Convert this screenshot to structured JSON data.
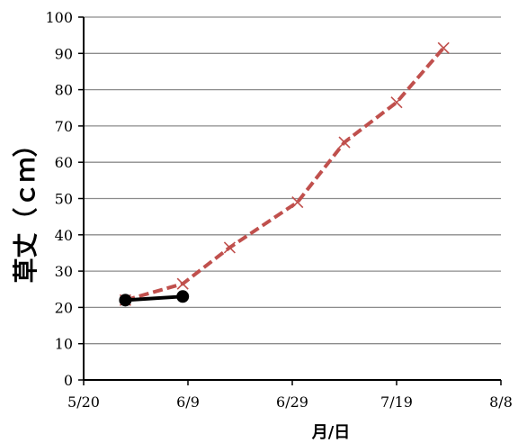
{
  "chart_data": {
    "type": "line",
    "title": "",
    "xlabel": "月/日",
    "ylabel": "草丈（ｃｍ）",
    "x_range": [
      "5/20",
      "8/8"
    ],
    "ylim": [
      0,
      100
    ],
    "x_ticks": [
      "5/20",
      "6/9",
      "6/29",
      "7/19",
      "8/8"
    ],
    "y_ticks": [
      0,
      10,
      20,
      30,
      40,
      50,
      60,
      70,
      80,
      90,
      100
    ],
    "grid": "horizontal",
    "legend": "none",
    "series": [
      {
        "color": "#c0504d",
        "line_style": "dashed",
        "marker": "x",
        "points": [
          {
            "x": "5/28",
            "y": 22
          },
          {
            "x": "6/8",
            "y": 26.5
          },
          {
            "x": "6/17",
            "y": 36.5
          },
          {
            "x": "6/30",
            "y": 49
          },
          {
            "x": "7/9",
            "y": 65.5
          },
          {
            "x": "7/19",
            "y": 76.5
          },
          {
            "x": "7/28",
            "y": 91.5
          }
        ]
      },
      {
        "color": "#000000",
        "line_style": "solid",
        "marker": "circle",
        "points": [
          {
            "x": "5/28",
            "y": 22
          },
          {
            "x": "6/8",
            "y": 23
          }
        ]
      }
    ]
  }
}
